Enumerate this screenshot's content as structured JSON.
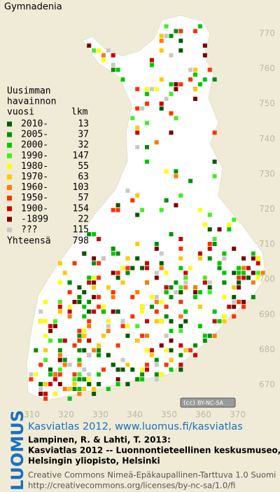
{
  "title": "Gymnadenia",
  "legend": {
    "heading": [
      "Uusimman",
      "havainnon"
    ],
    "col_year": "vuosi",
    "col_count": "lkm",
    "rows": [
      {
        "label": "2010-",
        "count": 13,
        "color": "#005a00"
      },
      {
        "label": "2005-",
        "count": 37,
        "color": "#009000"
      },
      {
        "label": "2000-",
        "count": 32,
        "color": "#00c800"
      },
      {
        "label": "1990-",
        "count": 147,
        "color": "#44ee22"
      },
      {
        "label": "1980-",
        "count": 55,
        "color": "#ffff00"
      },
      {
        "label": "1970-",
        "count": 63,
        "color": "#ffc800"
      },
      {
        "label": "1960-",
        "count": 103,
        "color": "#ff7a00"
      },
      {
        "label": "1950-",
        "count": 57,
        "color": "#ff3000"
      },
      {
        "label": "1900-",
        "count": 154,
        "color": "#cc0000"
      },
      {
        "label": "-1899",
        "count": 22,
        "color": "#7a0000"
      },
      {
        "label": "???",
        "count": 115,
        "color": "#c8c8c8"
      }
    ],
    "total_label": "Yhteensä",
    "total": 798
  },
  "axes": {
    "y_labels": [
      770,
      760,
      750,
      740,
      730,
      720,
      710,
      700,
      690,
      680,
      670
    ],
    "x_labels": [
      310,
      320,
      330,
      340,
      350,
      360,
      370
    ]
  },
  "badge": "BY-NC-SA",
  "footer": {
    "brand": "LUOMUS",
    "link": "Kasviatlas 2012, www.luomus.fi/kasviatlas",
    "citation": [
      "Lampinen, R. & Lahti, T. 2013:",
      "Kasviatlas 2012 -- Luonnontieteellinen keskusmuseo,",
      "Helsingin yliopisto, Helsinki"
    ],
    "license": [
      "Creative Commons Nimeä-Epäkaupallinen-Tarttuva 1.0 Suomi",
      "http://creativecommons.org/licenses/by-nc-sa/1.0/fi"
    ]
  }
}
